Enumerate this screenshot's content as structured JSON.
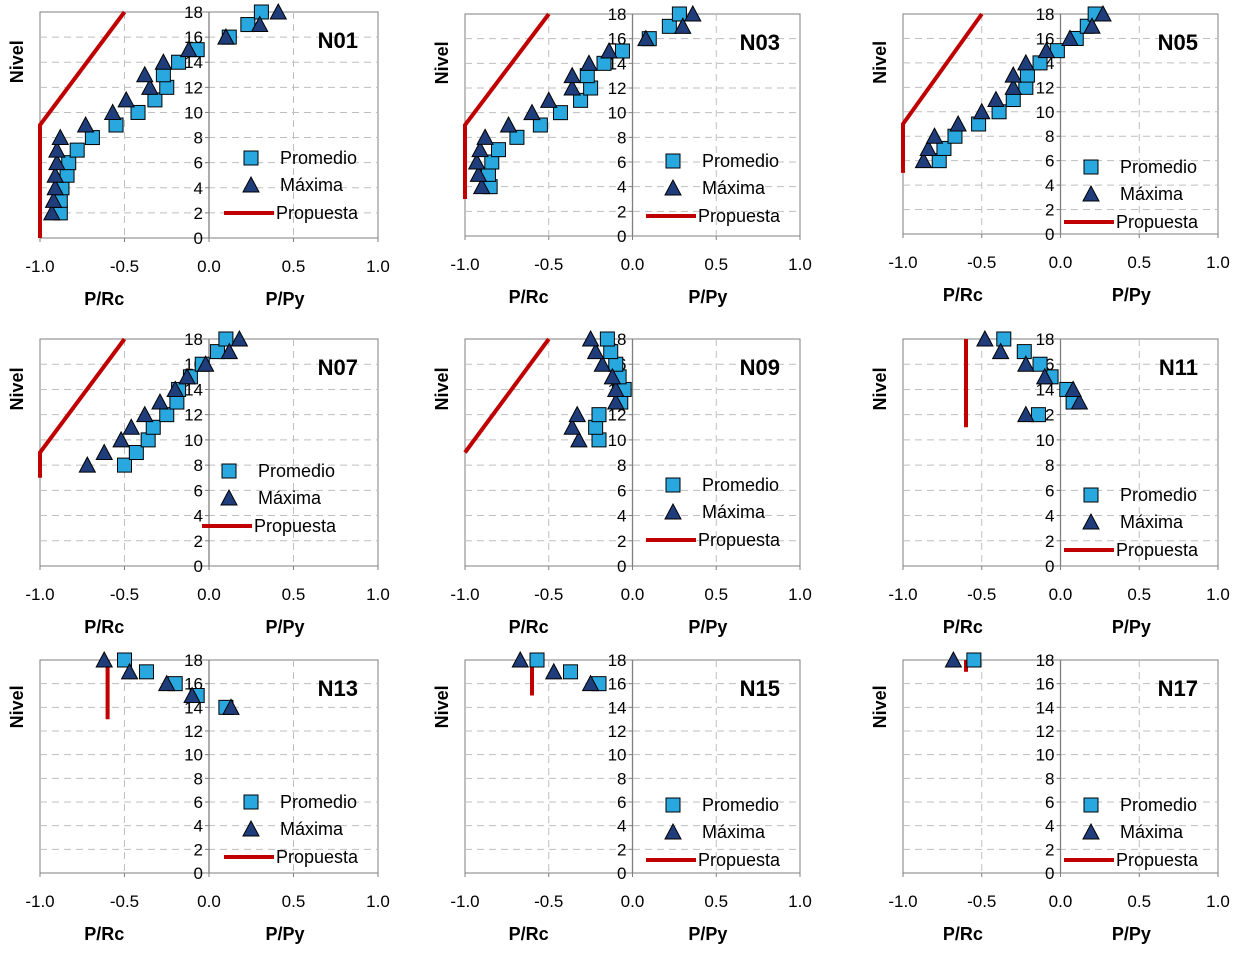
{
  "figure": {
    "y_axis_label": "Nivel",
    "x_label_left": "P/Rc",
    "x_label_right": "P/Py",
    "x_ticks": [
      "-1.0",
      "-0.5",
      "0.0",
      "0.5",
      "1.0"
    ],
    "y_ticks": [
      "0",
      "2",
      "4",
      "6",
      "8",
      "10",
      "12",
      "14",
      "16",
      "18"
    ],
    "legend": [
      "Promedio",
      "Máxima",
      "Propuesta"
    ],
    "colors": {
      "promedio": "#29a8df",
      "maxima": "#1f3d7a",
      "propuesta": "#c00000",
      "grid": "#bfbfbf",
      "axis": "#7f7f7f"
    }
  },
  "chart_data": [
    {
      "type": "scatter",
      "title": "N01",
      "xlim": [
        -1.0,
        1.0
      ],
      "ylim": [
        0,
        18
      ],
      "grid": true,
      "legend_position": "bottom-right",
      "series": [
        {
          "name": "Promedio",
          "marker": "square",
          "points": [
            [
              -0.88,
              2
            ],
            [
              -0.88,
              3
            ],
            [
              -0.87,
              4
            ],
            [
              -0.84,
              5
            ],
            [
              -0.83,
              6
            ],
            [
              -0.78,
              7
            ],
            [
              -0.69,
              8
            ],
            [
              -0.55,
              9
            ],
            [
              -0.42,
              10
            ],
            [
              -0.32,
              11
            ],
            [
              -0.25,
              12
            ],
            [
              -0.27,
              13
            ],
            [
              -0.18,
              14
            ],
            [
              -0.07,
              15
            ],
            [
              0.12,
              16
            ],
            [
              0.23,
              17
            ],
            [
              0.31,
              18
            ]
          ]
        },
        {
          "name": "Máxima",
          "marker": "triangle",
          "points": [
            [
              -0.93,
              2
            ],
            [
              -0.92,
              3
            ],
            [
              -0.91,
              4
            ],
            [
              -0.91,
              5
            ],
            [
              -0.9,
              6
            ],
            [
              -0.9,
              7
            ],
            [
              -0.88,
              8
            ],
            [
              -0.73,
              9
            ],
            [
              -0.57,
              10
            ],
            [
              -0.49,
              11
            ],
            [
              -0.35,
              12
            ],
            [
              -0.38,
              13
            ],
            [
              -0.27,
              14
            ],
            [
              -0.12,
              15
            ],
            [
              0.1,
              16
            ],
            [
              0.3,
              17
            ],
            [
              0.41,
              18
            ]
          ]
        },
        {
          "name": "Propuesta",
          "marker": "line",
          "points": [
            [
              -1.0,
              0
            ],
            [
              -1.0,
              9
            ],
            [
              -0.5,
              18
            ]
          ]
        }
      ]
    },
    {
      "type": "scatter",
      "title": "N03",
      "xlim": [
        -1.0,
        1.0
      ],
      "ylim": [
        0,
        18
      ],
      "grid": true,
      "legend_position": "bottom-right",
      "series": [
        {
          "name": "Promedio",
          "marker": "square",
          "points": [
            [
              -0.85,
              4
            ],
            [
              -0.86,
              5
            ],
            [
              -0.84,
              6
            ],
            [
              -0.8,
              7
            ],
            [
              -0.69,
              8
            ],
            [
              -0.55,
              9
            ],
            [
              -0.43,
              10
            ],
            [
              -0.31,
              11
            ],
            [
              -0.25,
              12
            ],
            [
              -0.27,
              13
            ],
            [
              -0.17,
              14
            ],
            [
              -0.06,
              15
            ],
            [
              0.1,
              16
            ],
            [
              0.22,
              17
            ],
            [
              0.28,
              18
            ]
          ]
        },
        {
          "name": "Máxima",
          "marker": "triangle",
          "points": [
            [
              -0.9,
              4
            ],
            [
              -0.92,
              5
            ],
            [
              -0.93,
              6
            ],
            [
              -0.91,
              7
            ],
            [
              -0.88,
              8
            ],
            [
              -0.74,
              9
            ],
            [
              -0.6,
              10
            ],
            [
              -0.5,
              11
            ],
            [
              -0.36,
              12
            ],
            [
              -0.36,
              13
            ],
            [
              -0.26,
              14
            ],
            [
              -0.14,
              15
            ],
            [
              0.08,
              16
            ],
            [
              0.3,
              17
            ],
            [
              0.36,
              18
            ]
          ]
        },
        {
          "name": "Propuesta",
          "marker": "line",
          "points": [
            [
              -1.0,
              3
            ],
            [
              -1.0,
              9
            ],
            [
              -0.5,
              18
            ]
          ]
        }
      ]
    },
    {
      "type": "scatter",
      "title": "N05",
      "xlim": [
        -1.0,
        1.0
      ],
      "ylim": [
        0,
        18
      ],
      "grid": true,
      "legend_position": "bottom-right",
      "series": [
        {
          "name": "Promedio",
          "marker": "square",
          "points": [
            [
              -0.77,
              6
            ],
            [
              -0.74,
              7
            ],
            [
              -0.67,
              8
            ],
            [
              -0.52,
              9
            ],
            [
              -0.39,
              10
            ],
            [
              -0.3,
              11
            ],
            [
              -0.22,
              12
            ],
            [
              -0.21,
              13
            ],
            [
              -0.13,
              14
            ],
            [
              -0.02,
              15
            ],
            [
              0.1,
              16
            ],
            [
              0.17,
              17
            ],
            [
              0.22,
              18
            ]
          ]
        },
        {
          "name": "Máxima",
          "marker": "triangle",
          "points": [
            [
              -0.87,
              6
            ],
            [
              -0.84,
              7
            ],
            [
              -0.8,
              8
            ],
            [
              -0.65,
              9
            ],
            [
              -0.5,
              10
            ],
            [
              -0.41,
              11
            ],
            [
              -0.3,
              12
            ],
            [
              -0.3,
              13
            ],
            [
              -0.22,
              14
            ],
            [
              -0.09,
              15
            ],
            [
              0.06,
              16
            ],
            [
              0.2,
              17
            ],
            [
              0.27,
              18
            ]
          ]
        },
        {
          "name": "Propuesta",
          "marker": "line",
          "points": [
            [
              -1.0,
              5
            ],
            [
              -1.0,
              9
            ],
            [
              -0.5,
              18
            ]
          ]
        }
      ]
    },
    {
      "type": "scatter",
      "title": "N07",
      "xlim": [
        -1.0,
        1.0
      ],
      "ylim": [
        0,
        18
      ],
      "grid": true,
      "legend_position": "bottom-right",
      "series": [
        {
          "name": "Promedio",
          "marker": "square",
          "points": [
            [
              -0.5,
              8
            ],
            [
              -0.43,
              9
            ],
            [
              -0.36,
              10
            ],
            [
              -0.33,
              11
            ],
            [
              -0.25,
              12
            ],
            [
              -0.19,
              13
            ],
            [
              -0.18,
              14
            ],
            [
              -0.11,
              15
            ],
            [
              -0.04,
              16
            ],
            [
              0.05,
              17
            ],
            [
              0.1,
              18
            ]
          ]
        },
        {
          "name": "Máxima",
          "marker": "triangle",
          "points": [
            [
              -0.72,
              8
            ],
            [
              -0.62,
              9
            ],
            [
              -0.52,
              10
            ],
            [
              -0.46,
              11
            ],
            [
              -0.38,
              12
            ],
            [
              -0.29,
              13
            ],
            [
              -0.2,
              14
            ],
            [
              -0.13,
              15
            ],
            [
              -0.02,
              16
            ],
            [
              0.12,
              17
            ],
            [
              0.18,
              18
            ]
          ]
        },
        {
          "name": "Propuesta",
          "marker": "line",
          "points": [
            [
              -1.0,
              7
            ],
            [
              -1.0,
              9
            ],
            [
              -0.5,
              18
            ]
          ]
        }
      ]
    },
    {
      "type": "scatter",
      "title": "N09",
      "xlim": [
        -1.0,
        1.0
      ],
      "ylim": [
        0,
        18
      ],
      "grid": true,
      "legend_position": "bottom-right",
      "series": [
        {
          "name": "Promedio",
          "marker": "square",
          "points": [
            [
              -0.2,
              10
            ],
            [
              -0.22,
              11
            ],
            [
              -0.2,
              12
            ],
            [
              -0.07,
              13
            ],
            [
              -0.05,
              14
            ],
            [
              -0.08,
              15
            ],
            [
              -0.1,
              16
            ],
            [
              -0.13,
              17
            ],
            [
              -0.15,
              18
            ]
          ]
        },
        {
          "name": "Máxima",
          "marker": "triangle",
          "points": [
            [
              -0.32,
              10
            ],
            [
              -0.36,
              11
            ],
            [
              -0.33,
              12
            ],
            [
              -0.1,
              13
            ],
            [
              -0.1,
              14
            ],
            [
              -0.12,
              15
            ],
            [
              -0.18,
              16
            ],
            [
              -0.22,
              17
            ],
            [
              -0.25,
              18
            ]
          ]
        },
        {
          "name": "Propuesta",
          "marker": "line",
          "points": [
            [
              -1.0,
              9
            ],
            [
              -0.5,
              18
            ]
          ]
        }
      ]
    },
    {
      "type": "scatter",
      "title": "N11",
      "xlim": [
        -1.0,
        1.0
      ],
      "ylim": [
        0,
        18
      ],
      "grid": true,
      "legend_position": "bottom-right",
      "series": [
        {
          "name": "Promedio",
          "marker": "square",
          "points": [
            [
              -0.14,
              12
            ],
            [
              0.08,
              13
            ],
            [
              0.04,
              14
            ],
            [
              -0.06,
              15
            ],
            [
              -0.13,
              16
            ],
            [
              -0.23,
              17
            ],
            [
              -0.36,
              18
            ]
          ]
        },
        {
          "name": "Máxima",
          "marker": "triangle",
          "points": [
            [
              -0.22,
              12
            ],
            [
              0.12,
              13
            ],
            [
              0.08,
              14
            ],
            [
              -0.1,
              15
            ],
            [
              -0.22,
              16
            ],
            [
              -0.38,
              17
            ],
            [
              -0.48,
              18
            ]
          ]
        },
        {
          "name": "Propuesta",
          "marker": "line",
          "points": [
            [
              -0.6,
              11
            ],
            [
              -0.6,
              18
            ]
          ]
        }
      ]
    },
    {
      "type": "scatter",
      "title": "N13",
      "xlim": [
        -1.0,
        1.0
      ],
      "ylim": [
        0,
        18
      ],
      "grid": true,
      "legend_position": "bottom-right",
      "series": [
        {
          "name": "Promedio",
          "marker": "square",
          "points": [
            [
              0.1,
              14
            ],
            [
              -0.07,
              15
            ],
            [
              -0.2,
              16
            ],
            [
              -0.37,
              17
            ],
            [
              -0.5,
              18
            ]
          ]
        },
        {
          "name": "Máxima",
          "marker": "triangle",
          "points": [
            [
              0.13,
              14
            ],
            [
              -0.1,
              15
            ],
            [
              -0.25,
              16
            ],
            [
              -0.47,
              17
            ],
            [
              -0.62,
              18
            ]
          ]
        },
        {
          "name": "Propuesta",
          "marker": "line",
          "points": [
            [
              -0.6,
              13
            ],
            [
              -0.6,
              18
            ]
          ]
        }
      ]
    },
    {
      "type": "scatter",
      "title": "N15",
      "xlim": [
        -1.0,
        1.0
      ],
      "ylim": [
        0,
        18
      ],
      "grid": true,
      "legend_position": "bottom-right",
      "series": [
        {
          "name": "Promedio",
          "marker": "square",
          "points": [
            [
              -0.2,
              16
            ],
            [
              -0.37,
              17
            ],
            [
              -0.57,
              18
            ]
          ]
        },
        {
          "name": "Máxima",
          "marker": "triangle",
          "points": [
            [
              -0.25,
              16
            ],
            [
              -0.47,
              17
            ],
            [
              -0.67,
              18
            ]
          ]
        },
        {
          "name": "Propuesta",
          "marker": "line",
          "points": [
            [
              -0.6,
              15
            ],
            [
              -0.6,
              18
            ]
          ]
        }
      ]
    },
    {
      "type": "scatter",
      "title": "N17",
      "xlim": [
        -1.0,
        1.0
      ],
      "ylim": [
        0,
        18
      ],
      "grid": true,
      "legend_position": "bottom-right",
      "series": [
        {
          "name": "Promedio",
          "marker": "square",
          "points": [
            [
              -0.55,
              18
            ]
          ]
        },
        {
          "name": "Máxima",
          "marker": "triangle",
          "points": [
            [
              -0.68,
              18
            ]
          ]
        },
        {
          "name": "Propuesta",
          "marker": "line",
          "points": [
            [
              -0.6,
              17
            ],
            [
              -0.6,
              18
            ]
          ]
        }
      ]
    }
  ]
}
